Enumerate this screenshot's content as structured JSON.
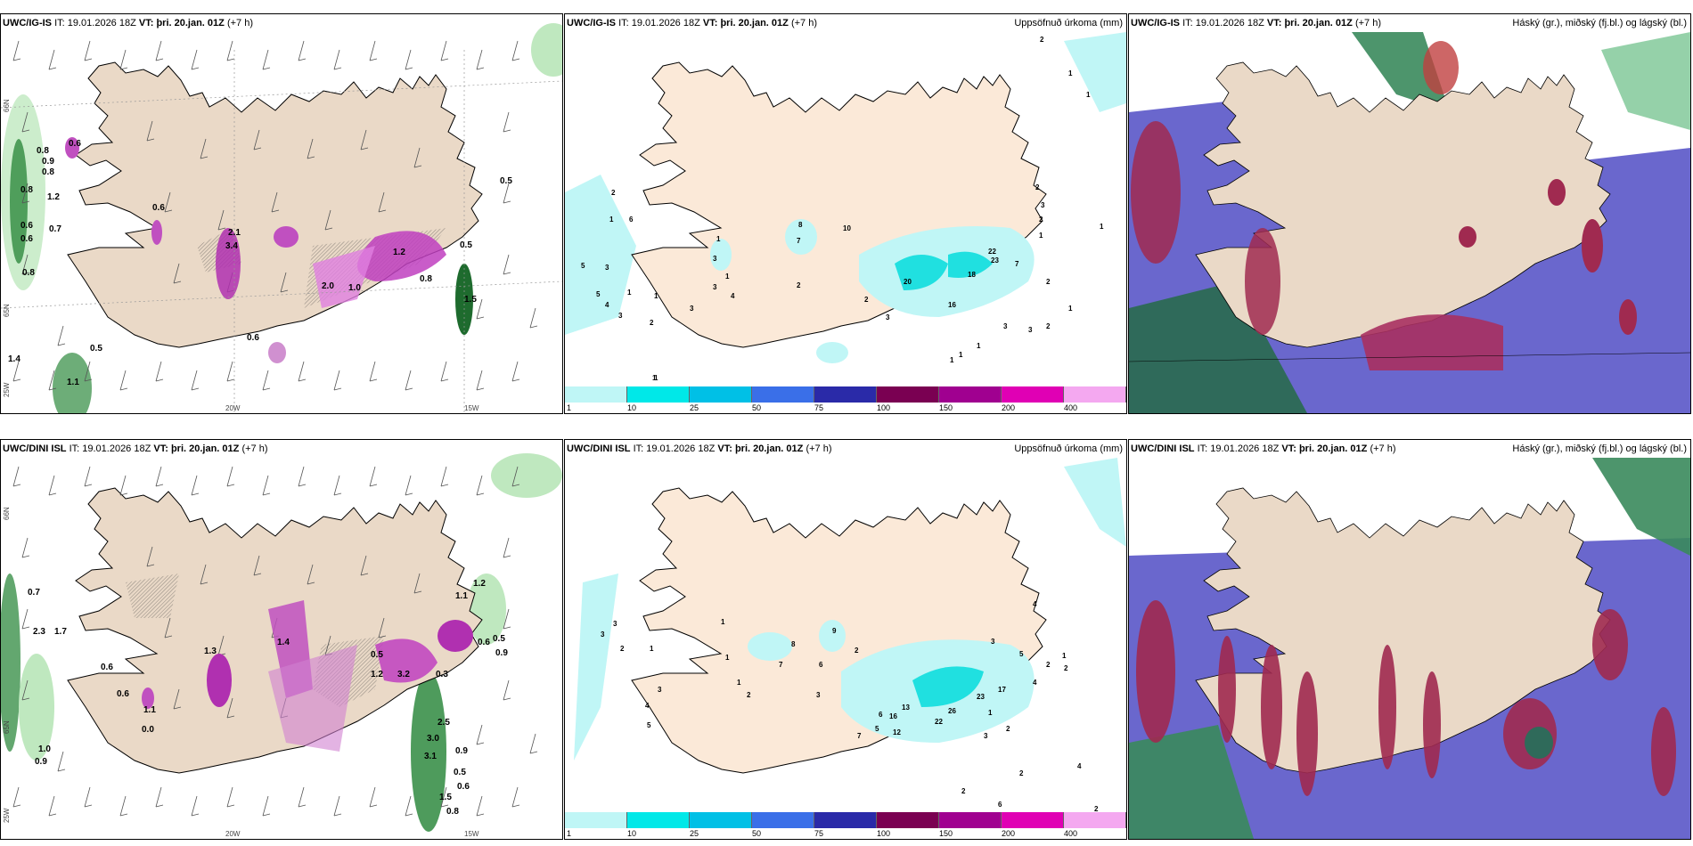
{
  "rows": [
    {
      "model": "UWC/IG-IS",
      "it_label": "IT:",
      "it_value": "19.01.2026 18Z",
      "vt_label": "VT:",
      "vt_value": "þri. 20.jan. 01Z",
      "lead": "(+7 h)",
      "precip_title": "Uppsöfnuð úrkoma (mm)",
      "cloud_title": "Háský (gr.), miðský (fj.bl.) og lágský (bl.)",
      "axes": {
        "lat66": "66N",
        "lat65": "65N",
        "lon20": "20W",
        "lon15": "15W",
        "lon25": "25W"
      },
      "wind_labels": [
        "0.6",
        "0.8",
        "0.9",
        "0.8",
        "0.8",
        "1.2",
        "0.6",
        "0.7",
        "0.6",
        "0.6",
        "0.8",
        "1.4",
        "0.5",
        "1.1",
        "2.1",
        "3.4",
        "1.2",
        "0.6",
        "0.5",
        "0.8",
        "1.5",
        "0.5",
        "2.0",
        "1.0"
      ],
      "precip_labels": [
        "2",
        "1",
        "1",
        "2",
        "6",
        "1",
        "5",
        "3",
        "5",
        "4",
        "3",
        "1",
        "1",
        "2",
        "1",
        "3",
        "3",
        "1",
        "1",
        "3",
        "4",
        "2",
        "8",
        "10",
        "7",
        "20",
        "16",
        "18",
        "22",
        "23",
        "7",
        "2",
        "3",
        "2",
        "2",
        "1",
        "3",
        "1",
        "1",
        "2",
        "3",
        "3",
        "2",
        "1",
        "1",
        "1",
        "1"
      ]
    },
    {
      "model": "UWC/DINI ISL",
      "it_label": "IT:",
      "it_value": "19.01.2026 18Z",
      "vt_label": "VT:",
      "vt_value": "þri. 20.jan. 01Z",
      "lead": "(+7 h)",
      "precip_title": "Uppsöfnuð úrkoma (mm)",
      "cloud_title": "Háský (gr.), miðský (fj.bl.) og lágský (bl.)",
      "axes": {
        "lat66": "66N",
        "lat65": "65N",
        "lon20": "20W",
        "lon15": "15W",
        "lon25": "25W"
      },
      "wind_labels": [
        "0.7",
        "2.3",
        "1.7",
        "0.6",
        "0.6",
        "1.1",
        "0.0",
        "1.0",
        "0.9",
        "1.3",
        "1.4",
        "0.5",
        "3.2",
        "1.2",
        "0.3",
        "2.5",
        "3.0",
        "3.1",
        "0.9",
        "0.5",
        "0.6",
        "1.5",
        "0.8",
        "1.2",
        "1.1",
        "0.6",
        "0.9",
        "0.5"
      ],
      "precip_labels": [
        "3",
        "3",
        "2",
        "1",
        "4",
        "5",
        "3",
        "1",
        "2",
        "1",
        "8",
        "9",
        "7",
        "6",
        "3",
        "1",
        "2",
        "6",
        "7",
        "5",
        "16",
        "13",
        "12",
        "22",
        "26",
        "23",
        "17",
        "3",
        "5",
        "4",
        "2",
        "4",
        "1",
        "2",
        "1",
        "2",
        "3",
        "2",
        "2",
        "4",
        "6",
        "2"
      ]
    }
  ],
  "colorbar": {
    "colors": [
      "#bff6f6",
      "#00e8e8",
      "#00c0e6",
      "#3a6fe8",
      "#2a2aa8",
      "#7a0052",
      "#a00090",
      "#e000b4",
      "#f4a8f0"
    ],
    "ticks": [
      "1",
      "10",
      "25",
      "50",
      "75",
      "100",
      "150",
      "200",
      "400"
    ]
  }
}
